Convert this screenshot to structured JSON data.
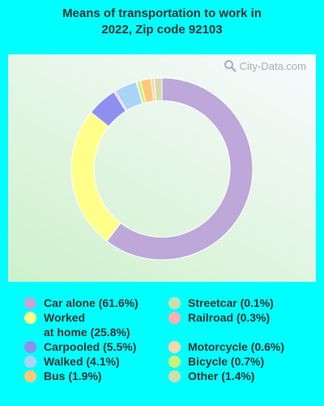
{
  "chart_data": {
    "type": "pie",
    "style": "donut",
    "title_line1": "Means of transportation to work in",
    "title_line2": "2022, Zip code 92103",
    "categories": [
      "Car alone",
      "Worked at home",
      "Carpooled",
      "Railroad",
      "Walked",
      "Streetcar",
      "Bicycle",
      "Bus",
      "Motorcycle",
      "Other"
    ],
    "values": [
      61.6,
      25.8,
      5.5,
      0.3,
      4.1,
      0.1,
      0.7,
      1.9,
      0.6,
      1.4
    ],
    "colors": [
      "#bda8d9",
      "#ffff8a",
      "#8f8ff0",
      "#ffb0b0",
      "#aad4f7",
      "#c8dfb0",
      "#ccf07a",
      "#ffc878",
      "#f7d6b0",
      "#d4dcac"
    ],
    "legend_position": "bottom"
  },
  "watermark": {
    "text": "City-Data.com"
  },
  "legend": {
    "items": [
      {
        "label": "Car alone (61.6%)",
        "color": "#bda8d9"
      },
      {
        "label": "Worked\nat home (25.8%)",
        "color": "#ffff8a"
      },
      {
        "label": "Carpooled (5.5%)",
        "color": "#8f8ff0"
      },
      {
        "label": "Walked (4.1%)",
        "color": "#aad4f7"
      },
      {
        "label": "Bus (1.9%)",
        "color": "#ffc878"
      },
      {
        "label": "Streetcar (0.1%)",
        "color": "#c8dfb0"
      },
      {
        "label": "Railroad (0.3%)",
        "color": "#ffb0b0"
      },
      {
        "label": "Motorcycle (0.6%)",
        "color": "#f7d6b0"
      },
      {
        "label": "Bicycle (0.7%)",
        "color": "#ccf07a"
      },
      {
        "label": "Other (1.4%)",
        "color": "#d4dcac"
      }
    ]
  }
}
